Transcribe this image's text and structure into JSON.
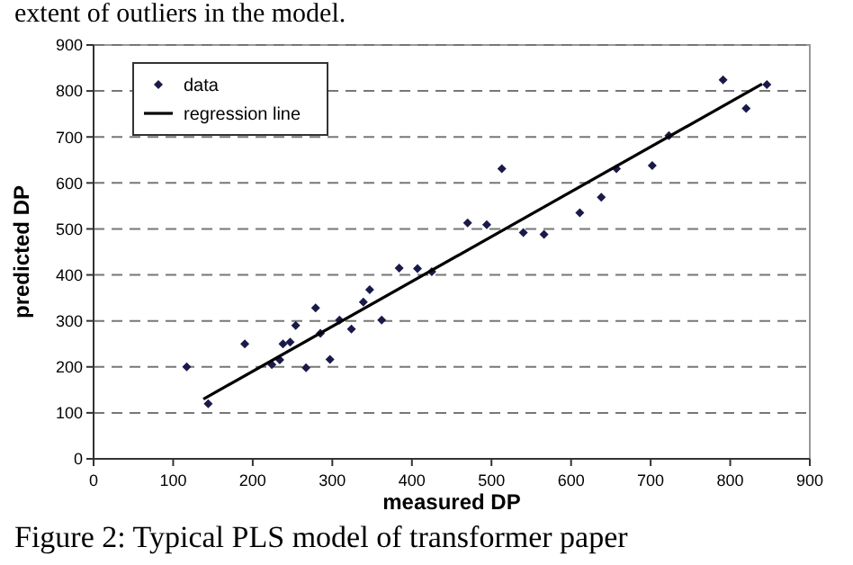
{
  "chart_data": {
    "type": "scatter",
    "xlabel": "measured DP",
    "ylabel": "predicted DP",
    "annotations": [
      "extent of outliers in the model.",
      "Figure 2: Typical PLS model of transformer paper"
    ],
    "xlim": [
      0,
      900
    ],
    "xticks": [
      0,
      100,
      200,
      300,
      400,
      500,
      600,
      700,
      800,
      900
    ],
    "ylim": [
      0,
      900
    ],
    "yticks": [
      0,
      100,
      200,
      300,
      400,
      500,
      600,
      700,
      800,
      900
    ],
    "grid": "y",
    "legend": "top left",
    "series": [
      {
        "name": "data",
        "type": "scatter",
        "marker": "diamond",
        "color": "#1a1a4a",
        "x": [
          117,
          144,
          190,
          224,
          234,
          238,
          247,
          254,
          267,
          279,
          285,
          297,
          309,
          324,
          339,
          347,
          362,
          384,
          407,
          425,
          470,
          494,
          513,
          540,
          566,
          611,
          638,
          657,
          702,
          723,
          791,
          820,
          846
        ],
        "values": [
          200,
          120,
          250,
          205,
          215,
          250,
          254,
          290,
          198,
          328,
          273,
          216,
          302,
          282,
          341,
          368,
          302,
          415,
          414,
          407,
          513,
          509,
          631,
          492,
          488,
          535,
          569,
          631,
          638,
          703,
          824,
          762,
          814
        ]
      },
      {
        "name": "regression line",
        "type": "line",
        "marker": "none",
        "line_style": "solid",
        "color": "#000000",
        "x": [
          138,
          840
        ],
        "values": [
          130,
          815
        ]
      }
    ]
  }
}
